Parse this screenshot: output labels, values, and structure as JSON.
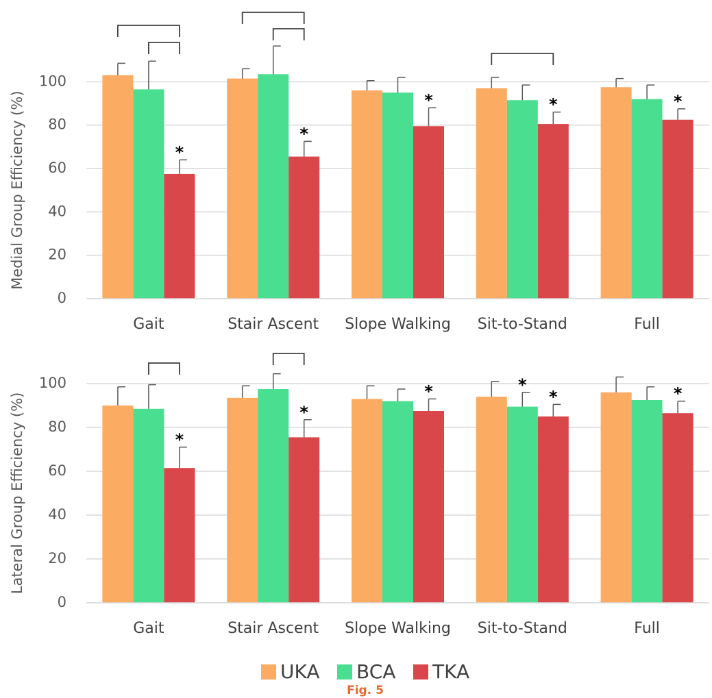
{
  "chart_data": [
    {
      "type": "bar",
      "y_label": "Medial Group Efficiency (%)",
      "categories": [
        "Gait",
        "Stair Ascent",
        "Slope Walking",
        "Sit-to-Stand",
        "Full"
      ],
      "series": [
        {
          "name": "UKA",
          "color": "#fcab63",
          "values": [
            103,
            101.5,
            96,
            97,
            97.5
          ],
          "errors": [
            5.5,
            4.5,
            4.5,
            5,
            4
          ]
        },
        {
          "name": "BCA",
          "color": "#4ade90",
          "values": [
            96.5,
            103.5,
            95,
            91.5,
            92
          ],
          "errors": [
            13,
            13,
            7,
            7,
            6.5
          ]
        },
        {
          "name": "TKA",
          "color": "#d9474b",
          "values": [
            57.5,
            65.5,
            79.5,
            80.5,
            82.5
          ],
          "errors": [
            6.5,
            7,
            8.5,
            5.5,
            5
          ]
        }
      ],
      "ylim": [
        0,
        120
      ],
      "yticks": [
        0,
        20,
        40,
        60,
        80,
        100
      ],
      "grid": true,
      "annotations": [
        {
          "text": "*",
          "series": "TKA",
          "category": "Gait"
        },
        {
          "text": "*",
          "series": "TKA",
          "category": "Stair Ascent"
        },
        {
          "text": "*",
          "series": "TKA",
          "category": "Slope Walking"
        },
        {
          "text": "*",
          "series": "TKA",
          "category": "Sit-to-Stand"
        },
        {
          "text": "*",
          "series": "TKA",
          "category": "Full"
        }
      ]
    },
    {
      "type": "bar",
      "y_label": "Lateral Group Efficiency (%)",
      "categories": [
        "Gait",
        "Stair Ascent",
        "Slope Walking",
        "Sit-to-Stand",
        "Full"
      ],
      "series": [
        {
          "name": "UKA",
          "color": "#fcab63",
          "values": [
            90,
            93.5,
            93,
            94,
            96
          ],
          "errors": [
            8.5,
            5.5,
            6,
            7,
            7
          ]
        },
        {
          "name": "BCA",
          "color": "#4ade90",
          "values": [
            88.5,
            97.5,
            92,
            89.5,
            92.5
          ],
          "errors": [
            11,
            7,
            5.5,
            6.5,
            6
          ]
        },
        {
          "name": "TKA",
          "color": "#d9474b",
          "values": [
            61.5,
            75.5,
            87.5,
            85,
            86.5
          ],
          "errors": [
            9.5,
            8,
            5.5,
            5.5,
            5.5
          ]
        }
      ],
      "ylim": [
        0,
        120
      ],
      "yticks": [
        0,
        20,
        40,
        60,
        80,
        100
      ],
      "grid": true,
      "annotations": [
        {
          "text": "*",
          "series": "TKA",
          "category": "Gait"
        },
        {
          "text": "*",
          "series": "TKA",
          "category": "Stair Ascent"
        },
        {
          "text": "*",
          "series": "TKA",
          "category": "Slope Walking"
        },
        {
          "text": "*",
          "series": "BCA",
          "category": "Sit-to-Stand"
        },
        {
          "text": "*",
          "series": "TKA",
          "category": "Sit-to-Stand"
        },
        {
          "text": "*",
          "series": "TKA",
          "category": "Full"
        }
      ]
    }
  ],
  "caption": "Fig. 5"
}
